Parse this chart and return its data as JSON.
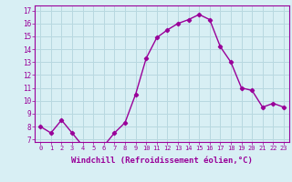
{
  "x": [
    0,
    1,
    2,
    3,
    4,
    5,
    6,
    7,
    8,
    9,
    10,
    11,
    12,
    13,
    14,
    15,
    16,
    17,
    18,
    19,
    20,
    21,
    22,
    23
  ],
  "y": [
    8.0,
    7.5,
    8.5,
    7.5,
    6.5,
    6.5,
    6.5,
    7.5,
    8.3,
    10.5,
    13.3,
    14.9,
    15.5,
    16.0,
    16.3,
    16.7,
    16.3,
    14.2,
    13.0,
    11.0,
    10.8,
    9.5,
    9.8,
    9.5
  ],
  "line_color": "#990099",
  "marker": "D",
  "marker_size": 2.2,
  "linewidth": 1.0,
  "xlabel": "Windchill (Refroidissement éolien,°C)",
  "xlabel_fontsize": 6.5,
  "ylabel_ticks": [
    7,
    8,
    9,
    10,
    11,
    12,
    13,
    14,
    15,
    16,
    17
  ],
  "ylim": [
    6.8,
    17.4
  ],
  "xlim": [
    -0.5,
    23.5
  ],
  "xtick_labels": [
    "0",
    "1",
    "2",
    "3",
    "4",
    "5",
    "6",
    "7",
    "8",
    "9",
    "10",
    "11",
    "12",
    "13",
    "14",
    "15",
    "16",
    "17",
    "18",
    "19",
    "20",
    "21",
    "22",
    "23"
  ],
  "bg_color": "#d8eff4",
  "grid_color": "#b8d8e0",
  "tick_color": "#990099",
  "label_color": "#990099",
  "font": "monospace"
}
